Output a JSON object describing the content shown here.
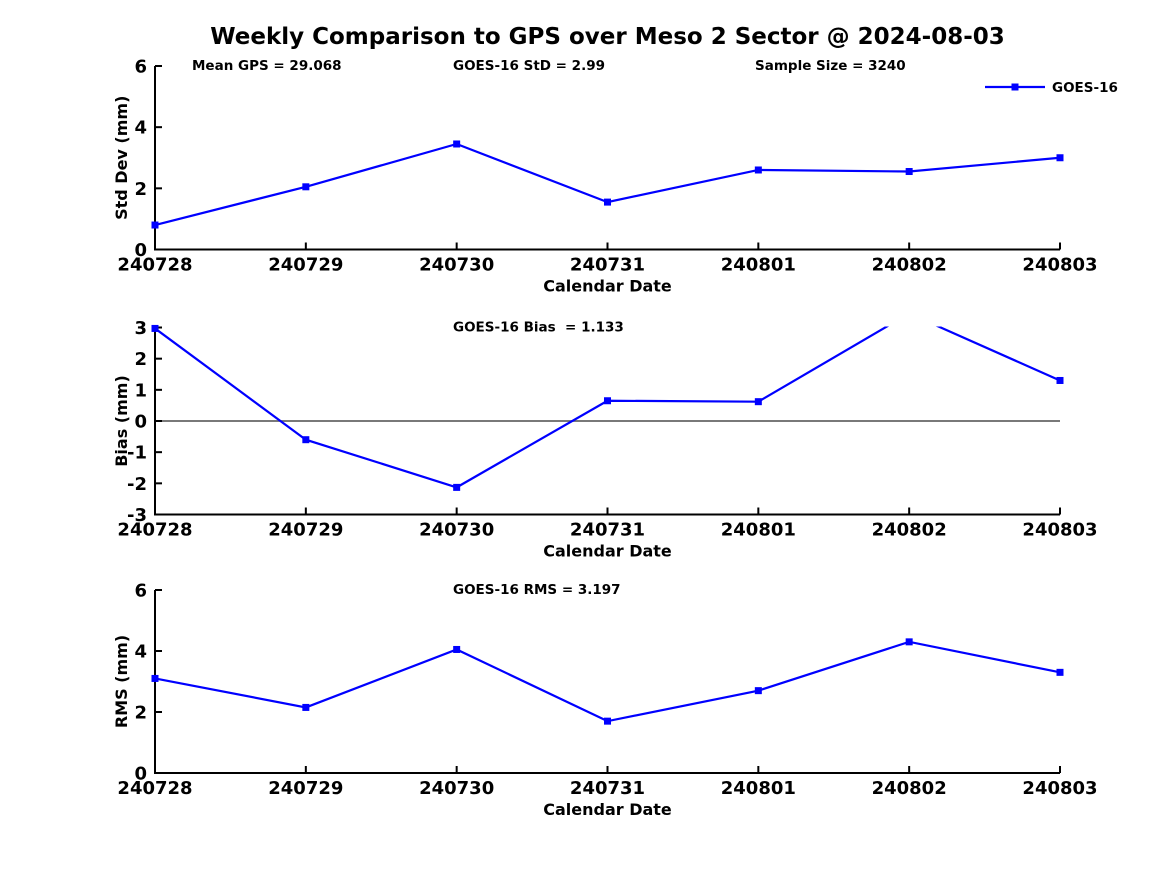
{
  "figure": {
    "title": "Weekly Comparison to GPS over Meso 2 Sector @ 2024-08-03",
    "background": "#ffffff",
    "line_color": "#0000ff",
    "axis_color": "#000000",
    "zero_line_color": "#666666"
  },
  "legend": {
    "label": "GOES-16",
    "marker": "square",
    "position": "top-right"
  },
  "chart_data": [
    {
      "type": "line",
      "name": "std-dev",
      "title": "",
      "xlabel": "Calendar Date",
      "ylabel": "Std Dev (mm)",
      "categories": [
        "240728",
        "240729",
        "240730",
        "240731",
        "240801",
        "240802",
        "240803"
      ],
      "series": [
        {
          "name": "GOES-16",
          "values": [
            0.8,
            2.05,
            3.45,
            1.55,
            2.6,
            2.55,
            3.0
          ]
        }
      ],
      "ylim": [
        0,
        6
      ],
      "yticks": [
        0,
        2,
        4,
        6
      ],
      "grid": false,
      "zero_line": false,
      "annotations": [
        "Mean GPS = 29.068",
        "GOES-16 StD = 2.99",
        "Sample Size = 3240"
      ],
      "legend_entries": [
        "GOES-16"
      ]
    },
    {
      "type": "line",
      "name": "bias",
      "title": "",
      "xlabel": "Calendar Date",
      "ylabel": "Bias (mm)",
      "categories": [
        "240728",
        "240729",
        "240730",
        "240731",
        "240801",
        "240802",
        "240803"
      ],
      "series": [
        {
          "name": "GOES-16",
          "values": [
            2.97,
            -0.6,
            -2.13,
            0.65,
            0.62,
            3.45,
            1.3
          ]
        }
      ],
      "ylim": [
        -3,
        3
      ],
      "yticks": [
        -3,
        -2,
        -1,
        0,
        1,
        2,
        3
      ],
      "grid": false,
      "zero_line": true,
      "clip_to_ylim": true,
      "annotations": [
        "GOES-16 Bias  = 1.133"
      ],
      "legend_entries": []
    },
    {
      "type": "line",
      "name": "rms",
      "title": "",
      "xlabel": "Calendar Date",
      "ylabel": "RMS (mm)",
      "categories": [
        "240728",
        "240729",
        "240730",
        "240731",
        "240801",
        "240802",
        "240803"
      ],
      "series": [
        {
          "name": "GOES-16",
          "values": [
            3.1,
            2.15,
            4.05,
            1.7,
            2.7,
            4.3,
            3.3
          ]
        }
      ],
      "ylim": [
        0,
        6
      ],
      "yticks": [
        0,
        2,
        4,
        6
      ],
      "grid": false,
      "zero_line": false,
      "annotations": [
        "GOES-16 RMS = 3.197"
      ],
      "legend_entries": []
    }
  ]
}
